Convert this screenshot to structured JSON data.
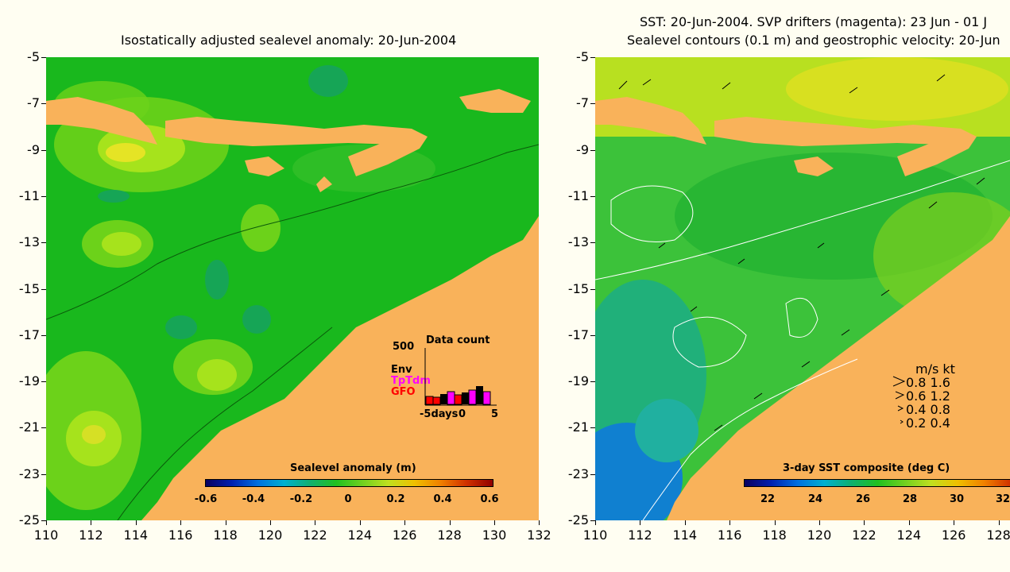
{
  "left_panel": {
    "title": "Isostatically adjusted sealevel anomaly: 20-Jun-2004",
    "colorbar": {
      "label": "Sealevel anomaly (m)",
      "ticks": [
        "-0.6",
        "-0.4",
        "-0.2",
        "0",
        "0.2",
        "0.4",
        "0.6"
      ]
    },
    "data_count": {
      "title": "Data count",
      "ymax_label": "500",
      "legend": [
        {
          "label": "Env",
          "color": "#000000"
        },
        {
          "label": "TpTdm",
          "color": "#ff00ff"
        },
        {
          "label": "GFO",
          "color": "#ff0000"
        }
      ],
      "x_labels": [
        "-5days",
        "0",
        "5"
      ]
    }
  },
  "right_panel": {
    "title_line1": "SST: 20-Jun-2004. SVP drifters (magenta): 23 Jun - 01 J",
    "title_line2": "Sealevel contours (0.1 m) and geostrophic velocity: 20-Jun",
    "colorbar": {
      "label": "3-day SST composite (deg C)",
      "ticks": [
        "22",
        "24",
        "26",
        "28",
        "30",
        "32"
      ]
    },
    "velocity_legend": {
      "header": "m/s  kt",
      "rows": [
        "0.8  1.6",
        "0.6  1.2",
        "0.4  0.8",
        "0.2  0.4"
      ]
    }
  },
  "axes": {
    "y_ticks": [
      "-5",
      "-7",
      "-9",
      "-11",
      "-13",
      "-15",
      "-17",
      "-19",
      "-21",
      "-23",
      "-25"
    ],
    "left_x_ticks": [
      "110",
      "112",
      "114",
      "116",
      "118",
      "120",
      "122",
      "124",
      "126",
      "128",
      "130",
      "132"
    ],
    "right_x_ticks": [
      "110",
      "112",
      "114",
      "116",
      "118",
      "120",
      "122",
      "124",
      "126",
      "128"
    ]
  },
  "colors": {
    "land": "#f9b25a",
    "background": "#fffef2"
  }
}
